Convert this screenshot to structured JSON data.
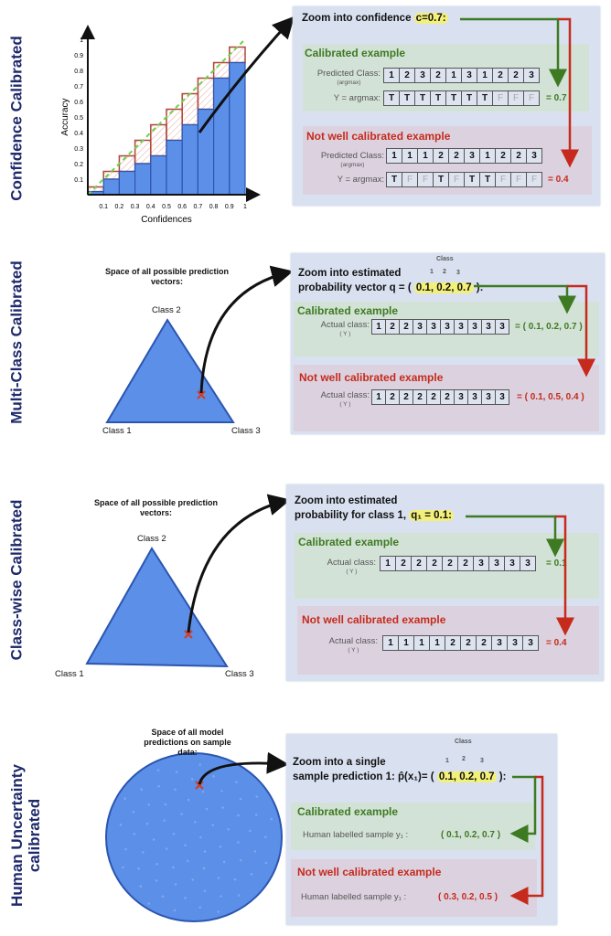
{
  "section_labels": [
    "Confidence Calibrated",
    "Multi-Class Calibrated",
    "Class-wise Calibrated",
    "Human Uncertainty calibrated"
  ],
  "colors": {
    "box": "#d9e1f1",
    "calibrated": "#3d7a22",
    "not_calibrated": "#c62a1c",
    "bar": "#5b8fe8",
    "highlight": "#f3f07a"
  },
  "chart_data": {
    "type": "bar",
    "xlabel": "Confidences",
    "ylabel": "Accuracy",
    "x_ticks": [
      "0.1",
      "0.2",
      "0.3",
      "0.4",
      "0.5",
      "0.6",
      "0.7",
      "0.8",
      "0.9",
      "1"
    ],
    "y_ticks": [
      "0.1",
      "0.2",
      "0.3",
      "0.4",
      "0.5",
      "0.6",
      "0.7",
      "0.8",
      "0.9",
      "1"
    ],
    "bins": [
      0.05,
      0.15,
      0.25,
      0.35,
      0.45,
      0.55,
      0.65,
      0.75,
      0.85,
      0.95
    ],
    "accuracy": [
      0.02,
      0.1,
      0.15,
      0.2,
      0.25,
      0.35,
      0.45,
      0.55,
      0.75,
      0.85
    ],
    "expected": [
      0.05,
      0.15,
      0.25,
      0.35,
      0.45,
      0.55,
      0.65,
      0.75,
      0.85,
      0.95
    ],
    "xlim": [
      0,
      1
    ],
    "ylim": [
      0,
      1
    ]
  },
  "s1": {
    "title_prefix": "Zoom into confidence ",
    "title_hl": "c=0.7:",
    "cal_title": "Calibrated example",
    "notcal_title": "Not well calibrated example",
    "pred_label": "Predicted Class:",
    "pred_sub": "(argmax)",
    "y_label": "Y = argmax:",
    "cal_pred": [
      "1",
      "2",
      "3",
      "2",
      "1",
      "3",
      "1",
      "2",
      "2",
      "3"
    ],
    "cal_y": [
      "T",
      "T",
      "T",
      "T",
      "T",
      "T",
      "T",
      "F",
      "F",
      "F"
    ],
    "cal_result": "= 0.7",
    "notcal_pred": [
      "1",
      "1",
      "1",
      "2",
      "2",
      "3",
      "1",
      "2",
      "2",
      "3"
    ],
    "notcal_y": [
      "T",
      "F",
      "F",
      "T",
      "F",
      "T",
      "T",
      "F",
      "F",
      "F"
    ],
    "notcal_result": "=  0.4"
  },
  "s2": {
    "space_label": "Space of all possible prediction vectors:",
    "class1": "Class 1",
    "class2": "Class 2",
    "class3": "Class 3",
    "ann_class": "Class",
    "ann_1": "1",
    "ann_2": "2",
    "ann_3": "3",
    "title_l1": "Zoom into estimated",
    "title_l2": "probability vector q = ( ",
    "title_hl": "0.1, 0.2, 0.7",
    "title_end": " ):",
    "cal_title": "Calibrated example",
    "notcal_title": "Not well calibrated example",
    "actual_label": "Actual class:",
    "actual_sub": "( Y )",
    "cal_row": [
      "1",
      "2",
      "2",
      "3",
      "3",
      "3",
      "3",
      "3",
      "3",
      "3"
    ],
    "cal_result": "= ( 0.1, 0.2, 0.7 )",
    "notcal_row": [
      "1",
      "2",
      "2",
      "2",
      "2",
      "2",
      "3",
      "3",
      "3",
      "3"
    ],
    "notcal_result": "= ( 0.1, 0.5, 0.4 )"
  },
  "s3": {
    "space_label": "Space of all possible prediction vectors:",
    "class1": "Class 1",
    "class2": "Class 2",
    "class3": "Class 3",
    "title_l1": "Zoom into estimated",
    "title_l2": "probability for class 1, ",
    "title_hl": "q₁ = 0.1:",
    "cal_title": "Calibrated example",
    "notcal_title": "Not well calibrated example",
    "actual_label": "Actual class:",
    "actual_sub": "( Y )",
    "cal_row": [
      "1",
      "2",
      "2",
      "2",
      "2",
      "2",
      "3",
      "3",
      "3",
      "3"
    ],
    "cal_result": "= 0.1",
    "notcal_row": [
      "1",
      "1",
      "1",
      "1",
      "2",
      "2",
      "2",
      "3",
      "3",
      "3"
    ],
    "notcal_result": "= 0.4"
  },
  "s4": {
    "space_label": "Space of all model predictions on sample data:",
    "ann_class": "Class",
    "ann_1": "1",
    "ann_2": "2",
    "ann_3": "3",
    "title_l1": "Zoom into a single",
    "title_l2": "sample prediction 1: p̂(x₁)= ( ",
    "title_hl": "0.1, 0.2, 0.7",
    "title_end": " ):",
    "cal_title": "Calibrated example",
    "notcal_title": "Not well calibrated example",
    "human_label": "Human labelled sample y₁ :",
    "cal_result": "( 0.1, 0.2, 0.7 )",
    "notcal_result": "( 0.3, 0.2, 0.5 )"
  }
}
